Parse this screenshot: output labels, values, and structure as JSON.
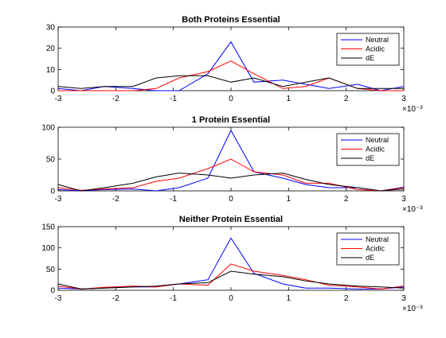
{
  "chart_data": [
    {
      "type": "line",
      "title": "Both Proteins Essential",
      "xlim": [
        -3,
        3
      ],
      "ylim": [
        0,
        30
      ],
      "x_ticks": [
        -3,
        -2,
        -1,
        0,
        1,
        2,
        3
      ],
      "y_ticks": [
        0,
        10,
        20,
        30
      ],
      "x_exponent": "×10⁻³",
      "legend_position": "top-right",
      "grid": false,
      "x": [
        -3,
        -2.6,
        -2.2,
        -1.7,
        -1.3,
        -0.9,
        -0.4,
        0,
        0.4,
        0.9,
        1.3,
        1.7,
        2.2,
        2.6,
        3
      ],
      "series": [
        {
          "name": "Neutral",
          "color": "#0000ff",
          "values": [
            1,
            0,
            2,
            1,
            0,
            0,
            8,
            23,
            4,
            5,
            3,
            1,
            3,
            0,
            2
          ]
        },
        {
          "name": "Acidic",
          "color": "#ff0000",
          "values": [
            0,
            0,
            0,
            0,
            1,
            6,
            9,
            14,
            8,
            1,
            2,
            6,
            1,
            0,
            0
          ]
        },
        {
          "name": "dE",
          "color": "#000000",
          "values": [
            2,
            1,
            2,
            2,
            6,
            7,
            7,
            4,
            6,
            2,
            4,
            6,
            1,
            1,
            1
          ]
        }
      ]
    },
    {
      "type": "line",
      "title": "1 Protein Essential",
      "xlim": [
        -3,
        3
      ],
      "ylim": [
        0,
        100
      ],
      "x_ticks": [
        -3,
        -2,
        -1,
        0,
        1,
        2,
        3
      ],
      "y_ticks": [
        0,
        50,
        100
      ],
      "x_exponent": "×10⁻³",
      "legend_position": "top-right",
      "grid": false,
      "x": [
        -3,
        -2.6,
        -2.2,
        -1.7,
        -1.3,
        -0.9,
        -0.4,
        0,
        0.4,
        0.9,
        1.3,
        1.7,
        2.2,
        2.6,
        3
      ],
      "series": [
        {
          "name": "Neutral",
          "color": "#0000ff",
          "values": [
            2,
            0,
            2,
            3,
            0,
            5,
            20,
            95,
            30,
            20,
            10,
            5,
            5,
            0,
            6
          ]
        },
        {
          "name": "Acidic",
          "color": "#ff0000",
          "values": [
            5,
            1,
            3,
            5,
            15,
            20,
            35,
            50,
            30,
            25,
            12,
            12,
            2,
            0,
            5
          ]
        },
        {
          "name": "dE",
          "color": "#000000",
          "values": [
            10,
            0,
            5,
            12,
            22,
            28,
            25,
            20,
            25,
            28,
            18,
            10,
            5,
            0,
            3
          ]
        }
      ]
    },
    {
      "type": "line",
      "title": "Neither Protein Essential",
      "xlim": [
        -3,
        3
      ],
      "ylim": [
        0,
        150
      ],
      "x_ticks": [
        -3,
        -2,
        -1,
        0,
        1,
        2,
        3
      ],
      "y_ticks": [
        0,
        50,
        100,
        150
      ],
      "x_exponent": "×10⁻³",
      "legend_position": "top-right",
      "grid": false,
      "x": [
        -3,
        -2.6,
        -2.2,
        -1.7,
        -1.3,
        -0.9,
        -0.4,
        0,
        0.4,
        0.9,
        1.3,
        1.7,
        2.2,
        2.6,
        3
      ],
      "series": [
        {
          "name": "Neutral",
          "color": "#0000ff",
          "values": [
            5,
            3,
            5,
            8,
            8,
            15,
            25,
            123,
            40,
            15,
            5,
            5,
            3,
            3,
            8
          ]
        },
        {
          "name": "Acidic",
          "color": "#ff0000",
          "values": [
            10,
            3,
            7,
            10,
            8,
            15,
            12,
            62,
            45,
            35,
            25,
            12,
            8,
            3,
            10
          ]
        },
        {
          "name": "dE",
          "color": "#000000",
          "values": [
            15,
            3,
            5,
            8,
            10,
            15,
            18,
            45,
            38,
            32,
            22,
            15,
            10,
            8,
            5
          ]
        }
      ]
    }
  ]
}
